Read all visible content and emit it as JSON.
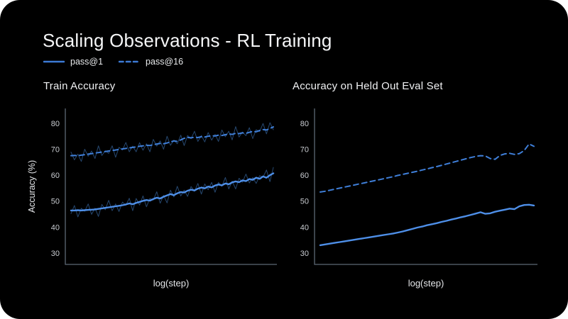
{
  "title": "Scaling Observations - RL Training",
  "legend": [
    {
      "label": "pass@1",
      "style": "solid",
      "color": "#3c7ad4"
    },
    {
      "label": "pass@16",
      "style": "dashed",
      "color": "#3c7ad4"
    }
  ],
  "colors": {
    "background": "#000000",
    "page_behind": "#ffffff",
    "axis": "#5d6875",
    "tick_label": "#c9ccd1",
    "axis_label": "#e4e6e9",
    "title_text": "#f5f6f7",
    "smooth_solid": "#4e8fe8",
    "smooth_dashed": "#3f7fd9",
    "raw_noise": "#26476f"
  },
  "chart_data": [
    {
      "type": "line",
      "title": "Train Accuracy",
      "xlabel": "log(step)",
      "ylabel": "Accuracy (%)",
      "yticks": [
        30,
        40,
        50,
        60,
        70,
        80
      ],
      "ylim": [
        25.6,
        85.7
      ],
      "grid": false,
      "legend_position": "top-left-of-slide",
      "x_axis_scale": "log (unlabeled ticks)",
      "series": [
        {
          "name": "pass@16 raw",
          "legend": null,
          "color": "#26476f",
          "width": 1,
          "dash": "",
          "values": [
            68.9,
            65.9,
            68.1,
            65.3,
            70.0,
            67.3,
            69.3,
            66.4,
            71.3,
            67.6,
            69.4,
            68.4,
            71.3,
            66.9,
            70.7,
            69.7,
            72.6,
            69.0,
            71.2,
            69.0,
            72.5,
            69.6,
            72.1,
            69.0,
            73.8,
            71.2,
            73.2,
            70.0,
            75.0,
            71.5,
            73.5,
            72.1,
            75.4,
            71.4,
            75.3,
            74.0,
            76.9,
            73.0,
            75.3,
            72.8,
            76.4,
            73.5,
            75.7,
            73.0,
            77.4,
            74.8,
            76.9,
            73.6,
            78.7,
            74.7,
            76.6,
            75.2,
            78.3,
            74.1,
            77.5,
            76.8,
            79.9,
            75.9,
            80.2,
            77.5
          ]
        },
        {
          "name": "pass@1 raw",
          "legend": null,
          "color": "#26476f",
          "width": 1,
          "dash": "",
          "values": [
            45.2,
            48.3,
            43.9,
            47.2,
            46.1,
            48.9,
            44.9,
            47.3,
            44.1,
            48.7,
            46.7,
            50.3,
            46.3,
            48.9,
            46.0,
            49.6,
            48.4,
            51.1,
            46.3,
            51.0,
            48.5,
            52.0,
            47.8,
            51.0,
            50.4,
            53.6,
            49.2,
            52.2,
            49.3,
            54.2,
            51.6,
            55.7,
            52.0,
            54.2,
            51.8,
            55.6,
            53.8,
            56.8,
            52.7,
            56.6,
            54.4,
            57.2,
            53.4,
            57.2,
            55.7,
            59.1,
            54.7,
            57.7,
            54.7,
            58.8,
            57.3,
            60.4,
            57.0,
            59.1,
            56.8,
            59.8,
            59.2,
            62.0,
            57.5,
            63.0
          ]
        },
        {
          "name": "pass@16",
          "legend": "pass@16",
          "color": "#3f7fd9",
          "width": 2,
          "dash": "7 5",
          "values": [
            67.5,
            67.6,
            67.5,
            67.7,
            67.9,
            68.1,
            68.3,
            68.5,
            68.7,
            68.9,
            69.1,
            69.3,
            69.5,
            69.7,
            69.9,
            70.1,
            70.3,
            70.5,
            70.7,
            70.9,
            71.1,
            71.3,
            71.5,
            71.4,
            71.7,
            72.0,
            72.2,
            72.1,
            72.4,
            72.8,
            73.2,
            73.0,
            73.6,
            74.2,
            74.5,
            74.4,
            74.6,
            74.5,
            74.8,
            74.7,
            75.0,
            75.2,
            75.1,
            75.4,
            75.3,
            75.6,
            75.9,
            75.7,
            76.1,
            76.0,
            76.3,
            76.1,
            76.5,
            76.9,
            76.7,
            77.2,
            77.6,
            77.4,
            78.0,
            78.6
          ]
        },
        {
          "name": "pass@1",
          "legend": "pass@1",
          "color": "#4e8fe8",
          "width": 2.4,
          "dash": "",
          "values": [
            46.4,
            46.4,
            46.5,
            46.4,
            46.5,
            46.6,
            46.7,
            46.8,
            47.0,
            47.2,
            47.4,
            47.6,
            47.8,
            48.0,
            48.2,
            48.4,
            48.7,
            49.1,
            48.8,
            49.3,
            49.7,
            50.1,
            50.4,
            50.2,
            50.8,
            51.3,
            51.0,
            51.7,
            52.2,
            52.7,
            52.3,
            53.0,
            53.5,
            53.3,
            54.0,
            54.4,
            54.1,
            54.8,
            55.2,
            54.9,
            55.6,
            55.3,
            56.0,
            56.4,
            56.1,
            56.8,
            56.5,
            57.2,
            57.6,
            57.3,
            58.0,
            57.7,
            58.5,
            58.2,
            59.0,
            58.6,
            59.5,
            59.0,
            60.0,
            60.7
          ]
        }
      ]
    },
    {
      "type": "line",
      "title": "Accuracy on Held Out Eval Set",
      "xlabel": "log(step)",
      "ylabel": "",
      "yticks": [
        30,
        40,
        50,
        60,
        70,
        80
      ],
      "ylim": [
        25.6,
        85.7
      ],
      "grid": false,
      "x_axis_scale": "log (unlabeled ticks)",
      "series": [
        {
          "name": "pass@16",
          "legend": "pass@16",
          "color": "#3f7fd9",
          "width": 2,
          "dash": "7 5",
          "values": [
            53.5,
            53.8,
            54.2,
            54.6,
            55.0,
            55.4,
            55.8,
            56.2,
            56.6,
            57.0,
            57.4,
            57.8,
            58.2,
            58.6,
            59.0,
            59.4,
            59.9,
            60.3,
            60.7,
            61.1,
            61.5,
            62.0,
            62.4,
            62.9,
            63.3,
            63.8,
            64.3,
            64.8,
            65.3,
            65.8,
            66.3,
            66.8,
            67.2,
            67.5,
            67.4,
            66.4,
            66.1,
            67.6,
            68.2,
            68.4,
            68.0,
            68.3,
            69.5,
            72.0,
            71.1
          ]
        },
        {
          "name": "pass@1",
          "legend": "pass@1",
          "color": "#4e8fe8",
          "width": 2.4,
          "dash": "",
          "values": [
            33.0,
            33.3,
            33.6,
            33.9,
            34.2,
            34.5,
            34.8,
            35.1,
            35.4,
            35.7,
            36.0,
            36.3,
            36.6,
            36.9,
            37.2,
            37.5,
            37.9,
            38.3,
            38.8,
            39.3,
            39.8,
            40.2,
            40.7,
            41.1,
            41.5,
            42.0,
            42.4,
            42.9,
            43.3,
            43.8,
            44.2,
            44.7,
            45.2,
            45.7,
            45.1,
            45.3,
            45.9,
            46.3,
            46.7,
            47.1,
            46.9,
            48.0,
            48.5,
            48.6,
            48.3
          ]
        }
      ]
    }
  ]
}
